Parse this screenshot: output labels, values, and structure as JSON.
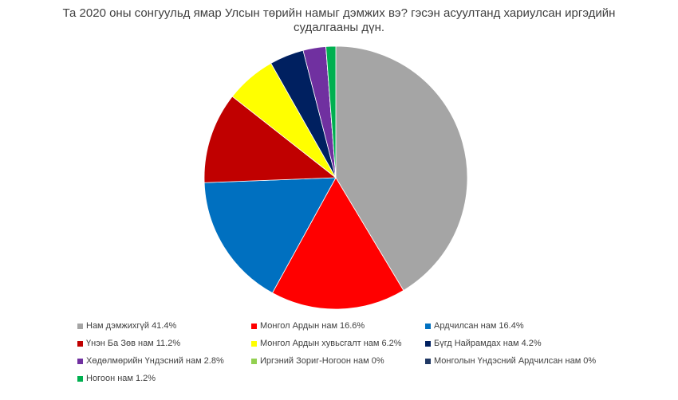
{
  "chart_data": {
    "type": "pie",
    "title": "Та 2020 оны сонгуульд ямар Улсын төрийн намыг дэмжих вэ? гэсэн асуултанд хариулсан иргэдийн судалгааны дүн.",
    "categories": [
      "Нам дэмжихгүй",
      "Монгол Ардын нам",
      "Ардчилсан нам",
      "Үнэн Ба Зөв нам",
      "Монгол Ардын хувьсгалт нам",
      "Бүгд Найрамдах нам",
      "Хөдөлмөрийн Үндэсний нам",
      "Иргэний Зориг-Ногоон нам",
      "Монголын Үндэсний Ардчилсан нам",
      "Ногоон нам"
    ],
    "values": [
      41.4,
      16.6,
      16.4,
      11.2,
      6.2,
      4.2,
      2.8,
      0,
      0,
      1.2
    ],
    "value_labels": [
      "41.4%",
      "16.6%",
      "16.4%",
      "11.2%",
      "6.2%",
      "4.2%",
      "2.8%",
      "0%",
      "0%",
      "1.2%"
    ],
    "colors": [
      "#a5a5a5",
      "#ff0000",
      "#0070c0",
      "#c00000",
      "#ffff00",
      "#002060",
      "#7030a0",
      "#92d050",
      "#203864",
      "#00b050"
    ]
  }
}
